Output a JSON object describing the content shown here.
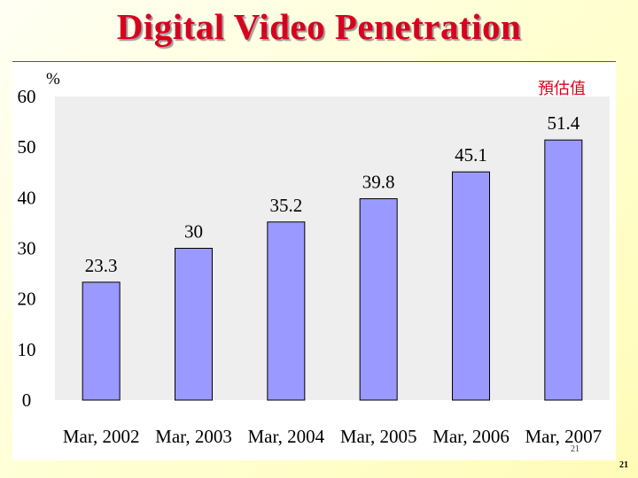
{
  "slide": {
    "title": "Digital Video Penetration",
    "page_number": "21"
  },
  "colors": {
    "title": "#d9001e",
    "bar_fill": "#9999ff",
    "bar_edge": "#000000",
    "plot_area": "#eeeeee",
    "annotation": "#d9001e"
  },
  "chart_data": {
    "type": "bar",
    "title": "",
    "xlabel": "",
    "ylabel": "%",
    "categories": [
      "Mar, 2002",
      "Mar, 2003",
      "Mar, 2004",
      "Mar, 2005",
      "Mar, 2006",
      "Mar, 2007"
    ],
    "series": [
      {
        "values": [
          23.3,
          30,
          35.2,
          39.8,
          45.1,
          51.4
        ]
      }
    ],
    "data_labels": [
      "23.3",
      "30",
      "35.2",
      "39.8",
      "45.1",
      "51.4"
    ],
    "ylim": [
      0,
      60
    ],
    "yticks": [
      0,
      10,
      20,
      30,
      40,
      50,
      60
    ],
    "grid": false,
    "legend": "none",
    "annotation": "預估值",
    "inner_page_mark": "21"
  }
}
